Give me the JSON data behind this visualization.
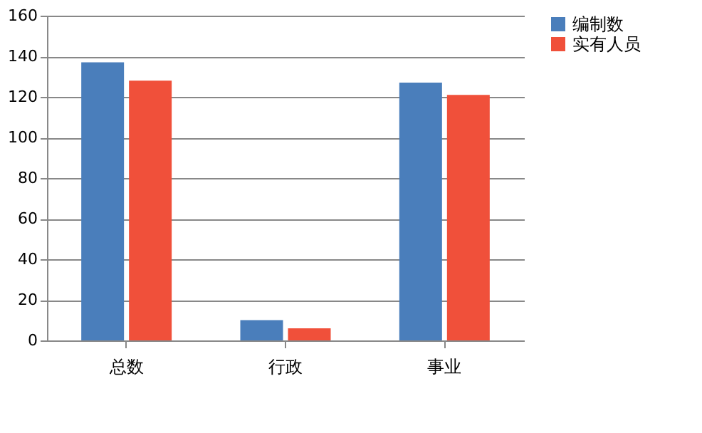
{
  "chart_data": {
    "type": "bar",
    "categories": [
      "总数",
      "行政",
      "事业"
    ],
    "series": [
      {
        "name": "编制数",
        "color": "#4a7ebb",
        "values": [
          137,
          10,
          127
        ]
      },
      {
        "name": "实有人员",
        "color": "#f0503a",
        "values": [
          128,
          6,
          121
        ]
      }
    ],
    "ylim": [
      0,
      160
    ],
    "yticks": [
      0,
      20,
      40,
      60,
      80,
      100,
      120,
      140,
      160
    ],
    "grid": "y",
    "legend": "right"
  }
}
